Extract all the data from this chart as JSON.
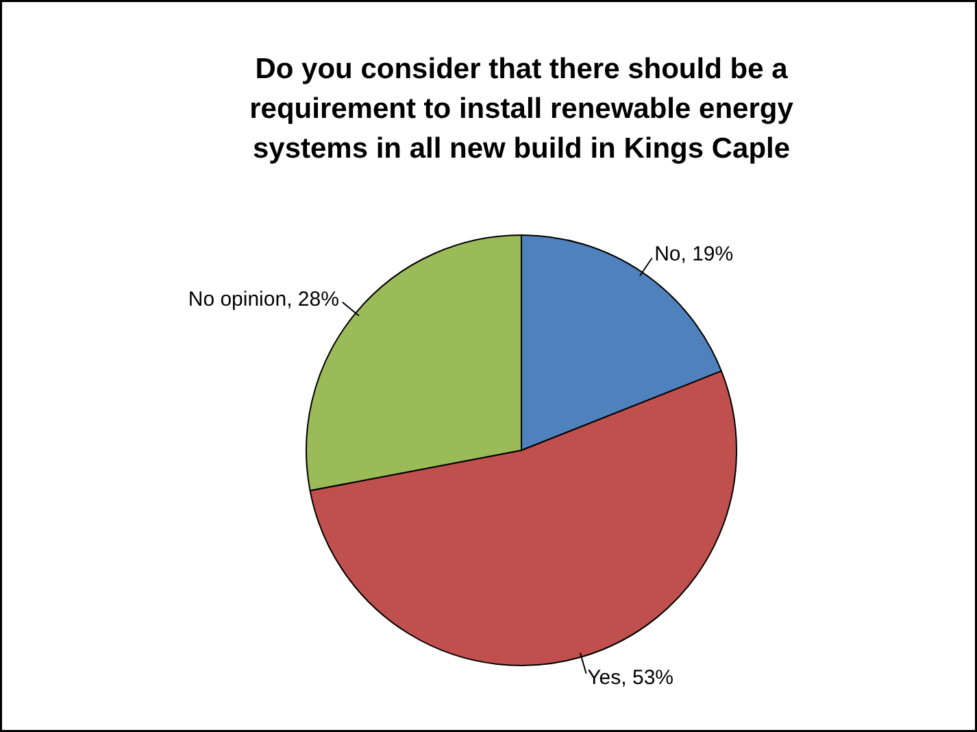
{
  "chart_data": {
    "type": "pie",
    "title": "Do you consider that there should be a requirement to install renewable energy systems in all new build in Kings Caple",
    "categories": [
      "No",
      "Yes",
      "No opinion"
    ],
    "values": [
      19,
      53,
      28
    ],
    "colors": [
      "#4f81bd",
      "#c0504d",
      "#9bbb59"
    ],
    "value_labels": [
      "19%",
      "53%",
      "28%"
    ]
  }
}
